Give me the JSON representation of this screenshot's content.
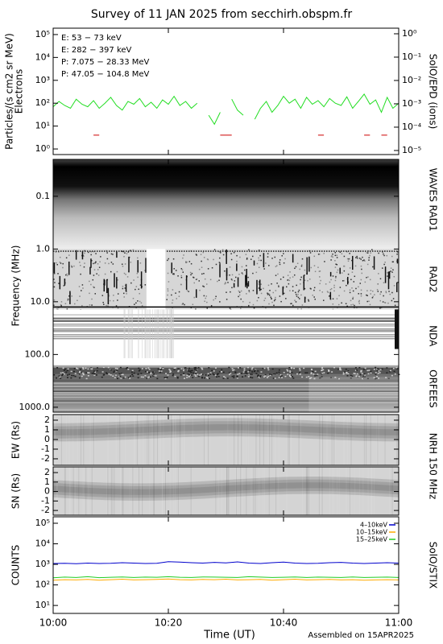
{
  "title": "Survey of 11 JAN 2025 from secchirh.obspm.fr",
  "footer": "Assembled on 15APR2025",
  "time_axis": {
    "xlabel": "Time (UT)",
    "xlim": [
      0,
      60
    ],
    "xticks": [
      {
        "value": 0,
        "label": "10:00"
      },
      {
        "value": 20,
        "label": "10:20"
      },
      {
        "value": 40,
        "label": "10:40"
      },
      {
        "value": 60,
        "label": "11:00"
      }
    ]
  },
  "chart_data": [
    {
      "type": "line",
      "ylabel": [
        "Particles/(s cm2 sr MeV)",
        "Electrons"
      ],
      "y2label": "SolO/EPD (ions)",
      "log": true,
      "ylim": [
        0.57,
        190000
      ],
      "yticks": [
        {
          "value": 1,
          "label": "10⁰"
        },
        {
          "value": 10,
          "label": "10¹"
        },
        {
          "value": 100,
          "label": "10²"
        },
        {
          "value": 1000,
          "label": "10³"
        },
        {
          "value": 10000,
          "label": "10⁴"
        },
        {
          "value": 100000,
          "label": "10⁵"
        }
      ],
      "y2lim": [
        6.7e-06,
        1.74
      ],
      "y2ticks": [
        {
          "value": 1e-05,
          "label": "10⁻⁵"
        },
        {
          "value": 0.0001,
          "label": "10⁻⁴"
        },
        {
          "value": 0.001,
          "label": "10⁻³"
        },
        {
          "value": 0.01,
          "label": "10⁻²"
        },
        {
          "value": 0.1,
          "label": "10⁻¹"
        },
        {
          "value": 1,
          "label": "10⁰"
        }
      ],
      "legend": "upper left",
      "x": [
        0,
        1,
        2,
        3,
        4,
        5,
        6,
        7,
        8,
        9,
        10,
        11,
        12,
        13,
        14,
        15,
        16,
        17,
        18,
        19,
        20,
        21,
        22,
        23,
        24,
        25,
        26,
        27,
        28,
        29,
        30,
        31,
        32,
        33,
        34,
        35,
        36,
        37,
        38,
        39,
        40,
        41,
        42,
        43,
        44,
        45,
        46,
        47,
        48,
        49,
        50,
        51,
        52,
        53,
        54,
        55,
        56,
        57,
        58,
        59,
        60
      ],
      "series": [
        {
          "name": "E: 53 − 73 keV",
          "color": "#22dd22",
          "values": [
            70,
            120,
            80,
            60,
            150,
            90,
            70,
            130,
            60,
            100,
            180,
            80,
            50,
            120,
            90,
            160,
            70,
            110,
            60,
            140,
            90,
            200,
            80,
            120,
            60,
            100,
            null,
            30,
            12,
            40,
            null,
            150,
            50,
            30,
            null,
            20,
            60,
            120,
            40,
            80,
            200,
            100,
            150,
            60,
            180,
            90,
            130,
            70,
            160,
            100,
            80,
            190,
            60,
            120,
            250,
            90,
            140,
            40,
            180,
            60,
            100
          ]
        },
        {
          "name": "E: 282 − 397 keV",
          "color": "#cc0000",
          "values": [
            null,
            null,
            null,
            null,
            null,
            null,
            null,
            4,
            4,
            null,
            null,
            null,
            null,
            null,
            null,
            null,
            null,
            null,
            null,
            null,
            null,
            null,
            null,
            null,
            null,
            null,
            null,
            null,
            null,
            4,
            4,
            4,
            null,
            null,
            null,
            null,
            null,
            null,
            null,
            null,
            null,
            null,
            null,
            null,
            null,
            null,
            4,
            4,
            null,
            null,
            null,
            null,
            null,
            null,
            4,
            4,
            null,
            4,
            4,
            null,
            null
          ]
        },
        {
          "name": "P: 7.075 − 28.33 MeV",
          "color": "#000000",
          "axis": "y2",
          "values": [
            null,
            null,
            null,
            null,
            null,
            null,
            null,
            null,
            null,
            null,
            null,
            null,
            null,
            null,
            null,
            null,
            null,
            null,
            null,
            null,
            null,
            null,
            null,
            null,
            null,
            null,
            null,
            null,
            null,
            null,
            null,
            null,
            null,
            null,
            null,
            null,
            null,
            null,
            null,
            null,
            null,
            null,
            null,
            null,
            null,
            null,
            null,
            null,
            null,
            null,
            null,
            null,
            null,
            null,
            null,
            null,
            null,
            null,
            null,
            null,
            null
          ]
        },
        {
          "name": "P: 47.05 − 104.8 MeV",
          "color": "#0000aa",
          "axis": "y2",
          "values": [
            null,
            null,
            null,
            null,
            null,
            null,
            null,
            null,
            null,
            null,
            null,
            null,
            null,
            null,
            null,
            null,
            null,
            null,
            null,
            null,
            null,
            null,
            null,
            null,
            null,
            null,
            null,
            null,
            null,
            null,
            null,
            null,
            null,
            null,
            null,
            null,
            null,
            null,
            null,
            null,
            null,
            null,
            null,
            null,
            null,
            null,
            null,
            null,
            null,
            null,
            null,
            null,
            null,
            null,
            null,
            null,
            null,
            null,
            null,
            null,
            null
          ]
        }
      ]
    },
    {
      "type": "spectrogram",
      "ylabel": "Frequency (MHz)",
      "log": true,
      "inverted": true,
      "ylim": [
        0.02,
        1240
      ],
      "yticks": [
        0.1,
        {
          "value": 1,
          "label": "1.0"
        },
        {
          "value": 10,
          "label": "10.0"
        },
        {
          "value": 100,
          "label": "100.0"
        },
        {
          "value": 1000,
          "label": "1000.0"
        }
      ],
      "bands": [
        {
          "name": "WAVES RAD1",
          "range": [
            0.02,
            1
          ]
        },
        {
          "name": "RAD2",
          "range": [
            1,
            14
          ]
        },
        {
          "name": "NDA",
          "range": [
            14,
            140
          ]
        },
        {
          "name": "ORFEES",
          "range": [
            160,
            1240
          ]
        }
      ]
    },
    {
      "type": "image",
      "ylabel": "EW (Rs)",
      "y2label": "NRH 150 MHz",
      "ylim": [
        -2.67,
        2.58
      ],
      "yticks": [
        -2,
        -1,
        0,
        1,
        2
      ]
    },
    {
      "type": "image",
      "ylabel": "SN (Rs)",
      "ylim": [
        -2.5,
        2.6
      ],
      "yticks": [
        -2,
        -1,
        0,
        1,
        2
      ]
    },
    {
      "type": "line",
      "ylabel": [
        "COUNTS"
      ],
      "y2label": "SolO/STIX",
      "log": true,
      "ylim": [
        4.1,
        206000
      ],
      "yticks": [
        {
          "value": 10,
          "label": "10¹"
        },
        {
          "value": 100,
          "label": "10²"
        },
        {
          "value": 1000,
          "label": "10³"
        },
        {
          "value": 10000,
          "label": "10⁴"
        },
        {
          "value": 100000,
          "label": "10⁵"
        }
      ],
      "legend": "upper right",
      "x": [
        0,
        2,
        4,
        6,
        8,
        10,
        12,
        14,
        16,
        18,
        20,
        22,
        24,
        26,
        28,
        30,
        32,
        34,
        36,
        38,
        40,
        42,
        44,
        46,
        48,
        50,
        52,
        54,
        56,
        58,
        60
      ],
      "series": [
        {
          "name": "4–10keV",
          "color": "#0000cc",
          "values": [
            1100,
            1120,
            1080,
            1150,
            1100,
            1130,
            1200,
            1150,
            1100,
            1120,
            1350,
            1300,
            1200,
            1150,
            1250,
            1180,
            1320,
            1150,
            1100,
            1200,
            1280,
            1150,
            1100,
            1120,
            1200,
            1250,
            1150,
            1100,
            1150,
            1200,
            1150
          ]
        },
        {
          "name": "10–15keV",
          "color": "#ffaa00",
          "values": [
            170,
            180,
            175,
            185,
            170,
            180,
            190,
            175,
            180,
            185,
            195,
            180,
            175,
            185,
            180,
            190,
            175,
            180,
            185,
            170,
            180,
            190,
            175,
            180,
            185,
            175,
            180,
            170,
            175,
            180,
            175
          ]
        },
        {
          "name": "15–25keV",
          "color": "#22cc22",
          "values": [
            220,
            240,
            230,
            250,
            225,
            235,
            245,
            230,
            240,
            235,
            250,
            235,
            230,
            245,
            240,
            235,
            230,
            250,
            240,
            230,
            235,
            245,
            230,
            240,
            235,
            230,
            245,
            230,
            235,
            240,
            230
          ]
        }
      ]
    }
  ]
}
